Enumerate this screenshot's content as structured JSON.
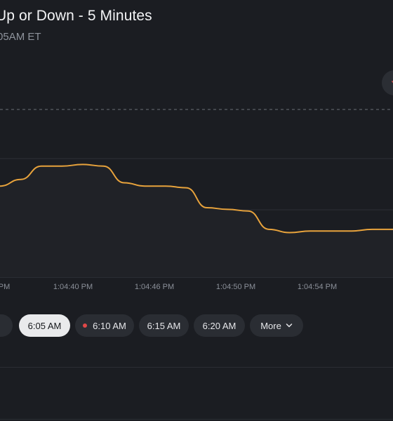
{
  "header": {
    "title": "Up or Down - 5 Minutes",
    "subtitle": "05AM ET"
  },
  "icons": {
    "corner_button": "chevron-icon"
  },
  "chart_data": {
    "type": "line",
    "title": "",
    "xlabel": "",
    "ylabel": "",
    "x_ticks": [
      "PM",
      "1:04:40 PM",
      "1:04:46 PM",
      "1:04:50 PM",
      "1:04:54 PM"
    ],
    "line_color": "#e8a33c",
    "series": [
      {
        "values": [
          0.6,
          0.62,
          0.66,
          0.66,
          0.665,
          0.66,
          0.61,
          0.6,
          0.6,
          0.595,
          0.535,
          0.53,
          0.525,
          0.47,
          0.46,
          0.465,
          0.465,
          0.465,
          0.47,
          0.47
        ]
      }
    ],
    "grid": true,
    "reference_lines": [
      "dashed",
      "dashed"
    ]
  },
  "times": {
    "items": [
      {
        "label": "6:05 AM",
        "active": true,
        "live": false
      },
      {
        "label": "6:10 AM",
        "active": false,
        "live": true
      },
      {
        "label": "6:15 AM",
        "active": false,
        "live": false
      },
      {
        "label": "6:20 AM",
        "active": false,
        "live": false
      }
    ],
    "more_label": "More"
  },
  "colors": {
    "background": "#1b1d22",
    "line": "#e8a33c",
    "active_chip": "#e9eaec",
    "chip": "#2a2d33",
    "live_dot": "#e04848",
    "green_dot": "#5db46a"
  }
}
